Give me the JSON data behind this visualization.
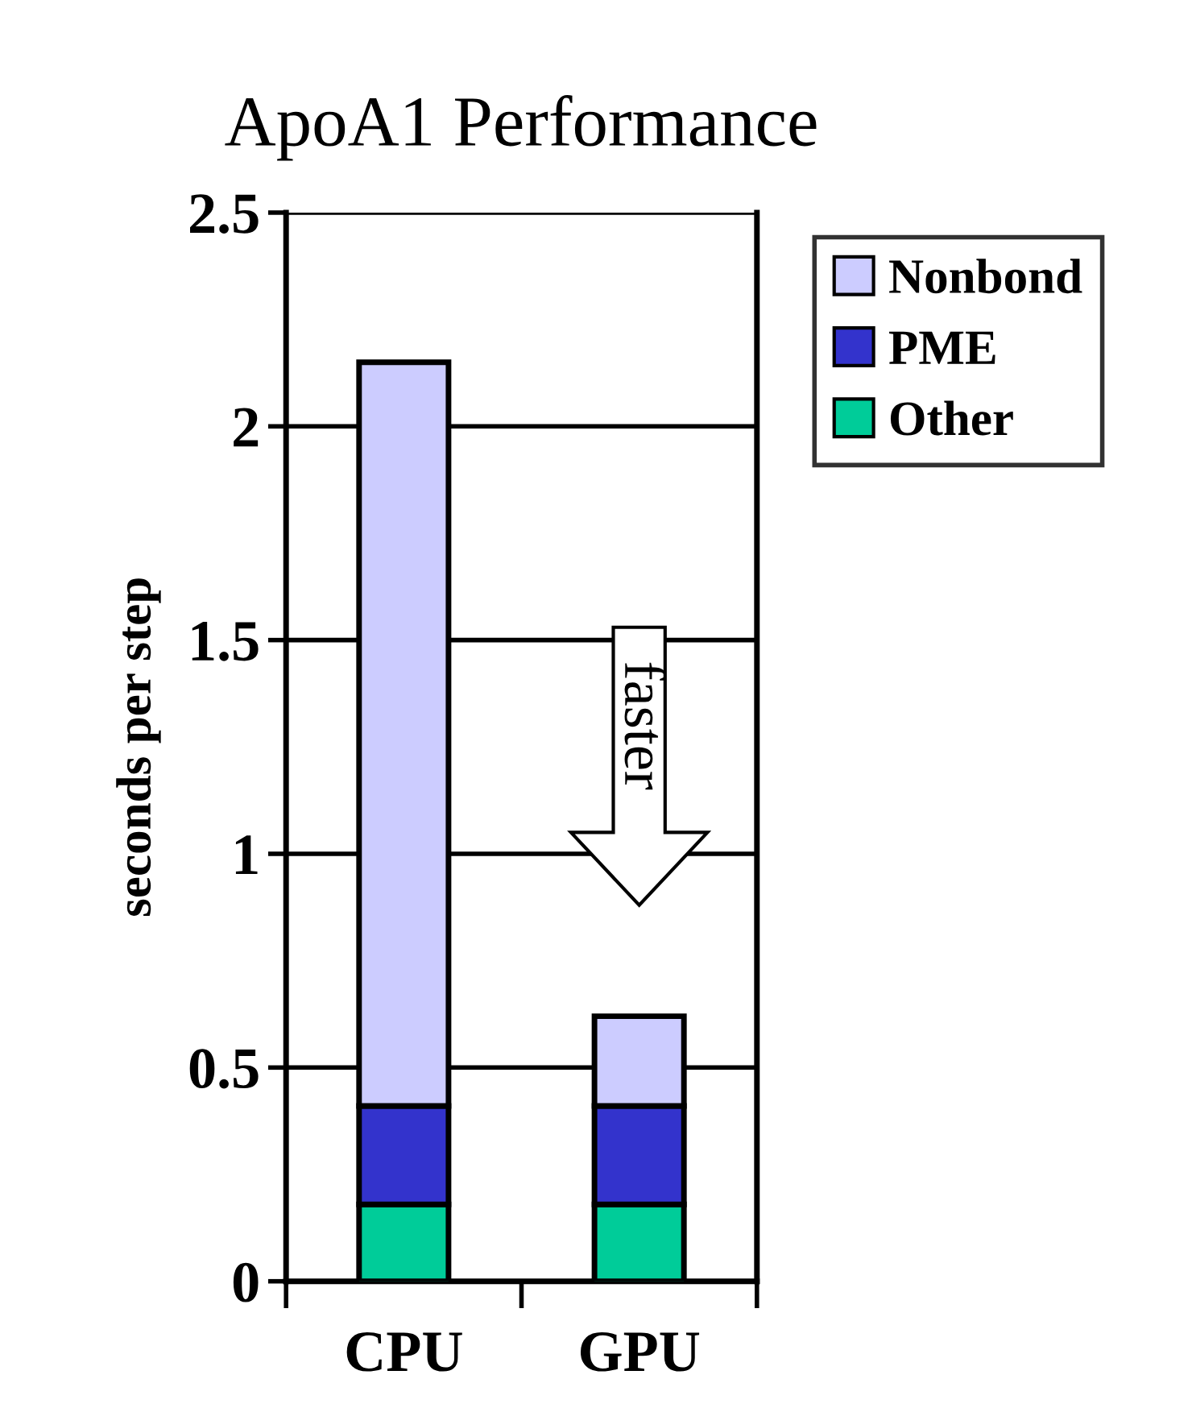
{
  "chart_data": {
    "type": "bar",
    "title": "ApoA1 Performance",
    "ylabel": "seconds per step",
    "categories": [
      "CPU",
      "GPU"
    ],
    "stacked": true,
    "series": [
      {
        "name": "Other",
        "color": "#00cc99",
        "values": [
          0.18,
          0.18
        ]
      },
      {
        "name": "PME",
        "color": "#3333cc",
        "values": [
          0.23,
          0.23
        ]
      },
      {
        "name": "Nonbond",
        "color": "#ccccff",
        "values": [
          1.74,
          0.21
        ]
      }
    ],
    "ylim": [
      0,
      2.5
    ],
    "yticks": [
      0,
      0.5,
      1,
      1.5,
      2,
      2.5
    ],
    "grid": "y",
    "legend": "top right",
    "annotations": [
      "faster"
    ]
  }
}
